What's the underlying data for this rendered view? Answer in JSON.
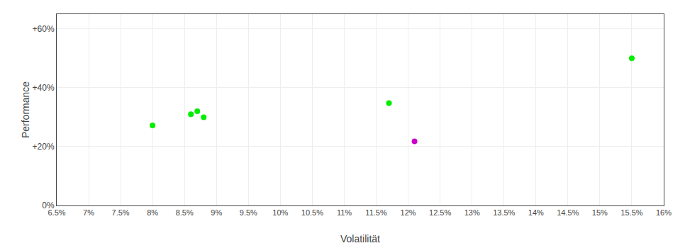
{
  "chart_data": {
    "type": "scatter",
    "xlabel": "Volatilität",
    "ylabel": "Performance",
    "xlim": [
      0.065,
      0.16
    ],
    "ylim": [
      0.0,
      0.65
    ],
    "xticks": [
      {
        "value": 0.065,
        "label": "6.5%"
      },
      {
        "value": 0.07,
        "label": "7%"
      },
      {
        "value": 0.075,
        "label": "7.5%"
      },
      {
        "value": 0.08,
        "label": "8%"
      },
      {
        "value": 0.085,
        "label": "8.5%"
      },
      {
        "value": 0.09,
        "label": "9%"
      },
      {
        "value": 0.095,
        "label": "9.5%"
      },
      {
        "value": 0.1,
        "label": "10%"
      },
      {
        "value": 0.105,
        "label": "10.5%"
      },
      {
        "value": 0.11,
        "label": "11%"
      },
      {
        "value": 0.115,
        "label": "11.5%"
      },
      {
        "value": 0.12,
        "label": "12%"
      },
      {
        "value": 0.125,
        "label": "12.5%"
      },
      {
        "value": 0.13,
        "label": "13%"
      },
      {
        "value": 0.135,
        "label": "13.5%"
      },
      {
        "value": 0.14,
        "label": "14%"
      },
      {
        "value": 0.145,
        "label": "14.5%"
      },
      {
        "value": 0.15,
        "label": "15%"
      },
      {
        "value": 0.155,
        "label": "15.5%"
      },
      {
        "value": 0.16,
        "label": "16%"
      }
    ],
    "yticks": [
      {
        "value": 0.0,
        "label": "0%"
      },
      {
        "value": 0.2,
        "label": "+20%"
      },
      {
        "value": 0.4,
        "label": "+40%"
      },
      {
        "value": 0.6,
        "label": "+60%"
      }
    ],
    "grid": true,
    "series": [
      {
        "color": "#00ee00",
        "x": [
          0.08,
          0.086,
          0.087,
          0.088,
          0.117,
          0.155
        ],
        "values": [
          0.272,
          0.31,
          0.32,
          0.3,
          0.348,
          0.5
        ]
      },
      {
        "color": "#cc00cc",
        "x": [
          0.121
        ],
        "values": [
          0.218
        ]
      }
    ]
  }
}
